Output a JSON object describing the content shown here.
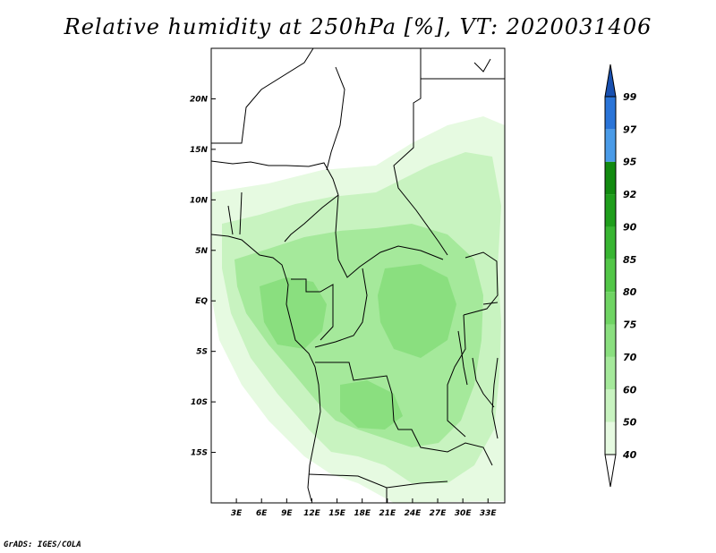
{
  "title": "Relative humidity at 250hPa [%], VT: 2020031406",
  "credit": "GrADS: IGES/COLA",
  "map": {
    "lat_range": [
      -20,
      25
    ],
    "lon_range": [
      0,
      35
    ],
    "lat_ticks": [
      {
        "value": 20,
        "label": "20N"
      },
      {
        "value": 15,
        "label": "15N"
      },
      {
        "value": 10,
        "label": "10N"
      },
      {
        "value": 5,
        "label": "5N"
      },
      {
        "value": 0,
        "label": "EQ"
      },
      {
        "value": -5,
        "label": "5S"
      },
      {
        "value": -10,
        "label": "10S"
      },
      {
        "value": -15,
        "label": "15S"
      }
    ],
    "lon_ticks": [
      {
        "value": 3,
        "label": "3E"
      },
      {
        "value": 6,
        "label": "6E"
      },
      {
        "value": 9,
        "label": "9E"
      },
      {
        "value": 12,
        "label": "12E"
      },
      {
        "value": 15,
        "label": "15E"
      },
      {
        "value": 18,
        "label": "18E"
      },
      {
        "value": 21,
        "label": "21E"
      },
      {
        "value": 24,
        "label": "24E"
      },
      {
        "value": 27,
        "label": "27E"
      },
      {
        "value": 30,
        "label": "30E"
      },
      {
        "value": 33,
        "label": "33E"
      }
    ]
  },
  "colorbar": {
    "levels": [
      "40",
      "50",
      "60",
      "70",
      "75",
      "80",
      "85",
      "90",
      "92",
      "95",
      "97",
      "99"
    ],
    "colors": [
      "#ffffff",
      "#e6fae1",
      "#c8f3c0",
      "#a5e99b",
      "#8adf7f",
      "#6fd463",
      "#52c647",
      "#38b532",
      "#1f9e1c",
      "#128a10",
      "#4a9be8",
      "#2a74d8",
      "#1850b0"
    ]
  }
}
